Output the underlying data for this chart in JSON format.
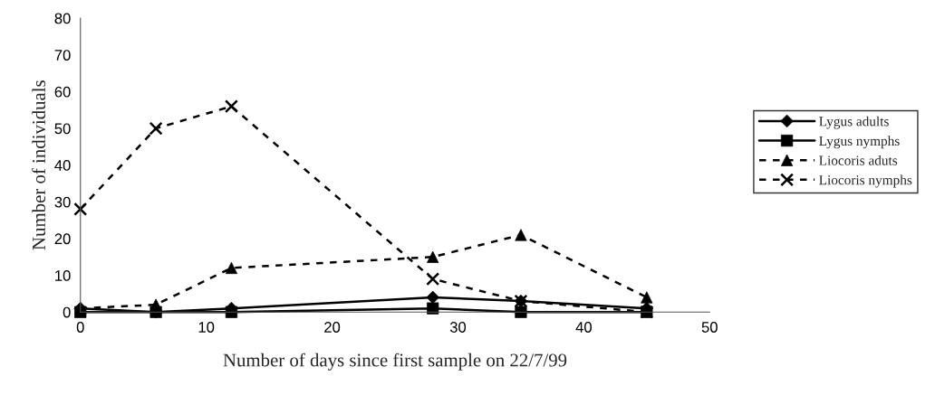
{
  "chart_data": {
    "type": "line",
    "xlabel": "Number of days since first sample on 22/7/99",
    "ylabel": "Number of individuals",
    "x": [
      0,
      6,
      12,
      28,
      35,
      45
    ],
    "series": [
      {
        "name": "Lygus adults",
        "color": "#000000",
        "marker": "diamond",
        "line_style": "solid",
        "values": [
          1,
          0,
          1,
          4,
          3,
          1
        ]
      },
      {
        "name": "Lygus nymphs",
        "color": "#000000",
        "marker": "square",
        "line_style": "solid",
        "values": [
          0,
          0,
          0,
          1,
          0,
          0
        ]
      },
      {
        "name": "Liocoris aduts",
        "color": "#000000",
        "marker": "triangle",
        "line_style": "dashed",
        "values": [
          1,
          2,
          12,
          15,
          21,
          4
        ]
      },
      {
        "name": "Liocoris nymphs",
        "color": "#000000",
        "marker": "cross",
        "line_style": "dashed",
        "values": [
          28,
          50,
          56,
          9,
          3,
          0
        ]
      }
    ],
    "xlim": [
      0,
      50
    ],
    "xticks": [
      0,
      10,
      20,
      30,
      40,
      50
    ],
    "ylim": [
      0,
      80
    ],
    "yticks": [
      0,
      10,
      20,
      30,
      40,
      50,
      60,
      70,
      80
    ],
    "grid": false,
    "legend": "right"
  }
}
